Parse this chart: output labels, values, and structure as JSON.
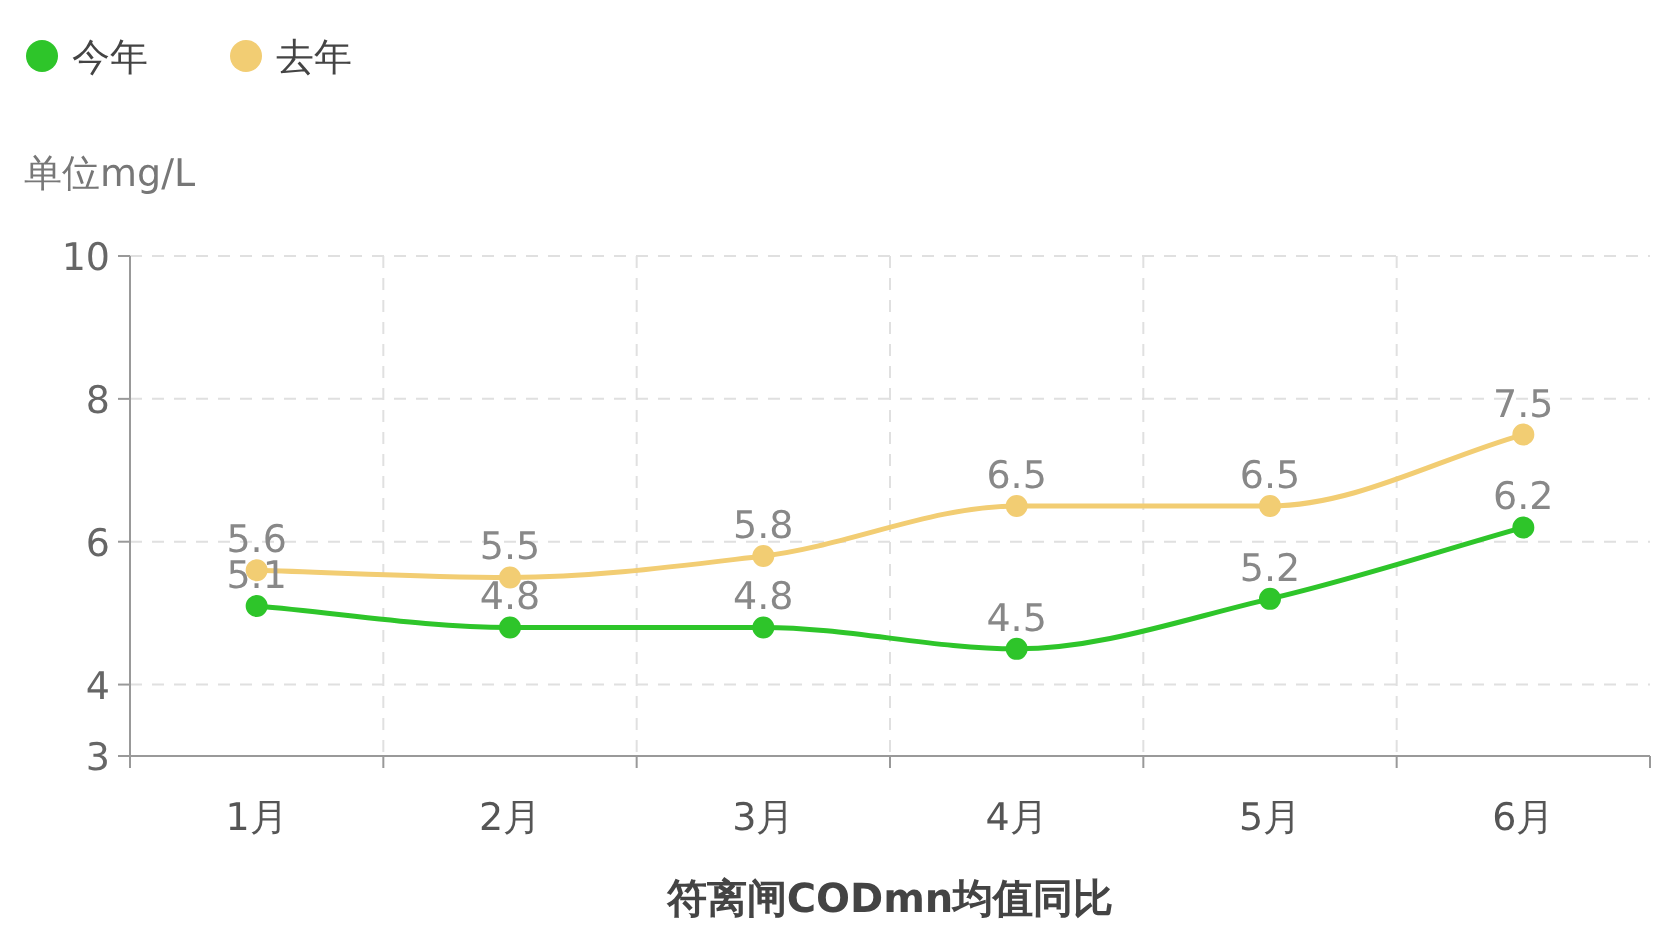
{
  "chart_data": {
    "type": "line",
    "xlabel": "符离闸CODmn均值同比",
    "ylabel": "单位mg/L",
    "categories": [
      "1月",
      "2月",
      "3月",
      "4月",
      "5月",
      "6月"
    ],
    "series": [
      {
        "name": "今年",
        "color": "#2ec52a",
        "values": [
          5.1,
          4.8,
          4.8,
          4.5,
          5.2,
          6.2
        ]
      },
      {
        "name": "去年",
        "color": "#f2cd73",
        "values": [
          5.6,
          5.5,
          5.8,
          6.5,
          6.5,
          7.5
        ]
      }
    ],
    "ylim": [
      3,
      10
    ],
    "yticks": [
      3,
      4,
      6,
      8,
      10
    ],
    "grid": true,
    "legend": "top left",
    "marker": "circle",
    "line_style": "solid",
    "data_labels": true
  }
}
